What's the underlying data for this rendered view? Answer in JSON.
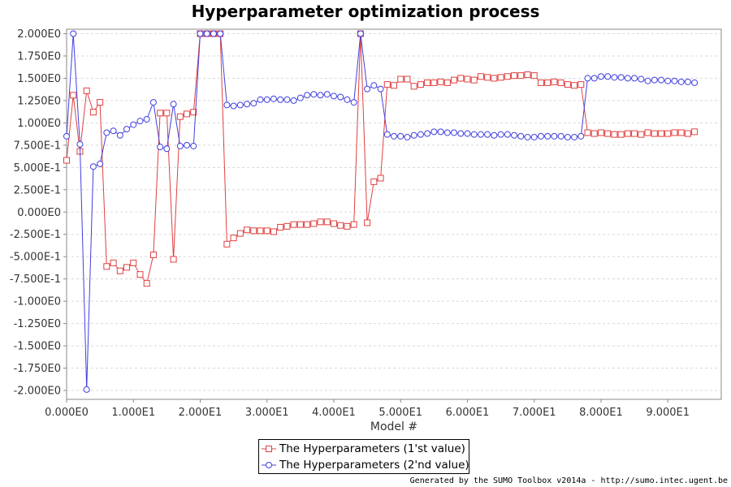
{
  "chart_data": {
    "type": "line",
    "title": "Hyperparameter optimization process",
    "xlabel": "Model #",
    "ylabel": "",
    "xlim": [
      0,
      98
    ],
    "ylim": [
      -2.1,
      2.05
    ],
    "x_ticks": [
      0,
      10,
      20,
      30,
      40,
      50,
      60,
      70,
      80,
      90
    ],
    "x_tick_labels": [
      "0.000E0",
      "1.000E1",
      "2.000E1",
      "3.000E1",
      "4.000E1",
      "5.000E1",
      "6.000E1",
      "7.000E1",
      "8.000E1",
      "9.000E1"
    ],
    "y_ticks": [
      2.0,
      1.75,
      1.5,
      1.25,
      1.0,
      0.75,
      0.5,
      0.25,
      0.0,
      -0.25,
      -0.5,
      -0.75,
      -1.0,
      -1.25,
      -1.5,
      -1.75,
      -2.0
    ],
    "y_tick_labels": [
      "2.000E0",
      "1.750E0",
      "1.500E0",
      "1.250E0",
      "1.000E0",
      "7.500E-1",
      "5.000E-1",
      "2.500E-1",
      "0.000E0",
      "-2.500E-1",
      "-5.000E-1",
      "-7.500E-1",
      "-1.000E0",
      "-1.250E0",
      "-1.500E0",
      "-1.750E0",
      "-2.000E0"
    ],
    "grid": true,
    "legend_position": "bottom-center",
    "series": [
      {
        "name": "The Hyperparameters (1'st value)",
        "color": "#e04040",
        "marker": "square",
        "x": [
          0,
          1,
          2,
          3,
          4,
          5,
          6,
          7,
          8,
          9,
          10,
          11,
          12,
          13,
          14,
          15,
          16,
          17,
          18,
          19,
          20,
          21,
          22,
          23,
          24,
          25,
          26,
          27,
          28,
          29,
          30,
          31,
          32,
          33,
          34,
          35,
          36,
          37,
          38,
          39,
          40,
          41,
          42,
          43,
          44,
          45,
          46,
          47,
          48,
          49,
          50,
          51,
          52,
          53,
          54,
          55,
          56,
          57,
          58,
          59,
          60,
          61,
          62,
          63,
          64,
          65,
          66,
          67,
          68,
          69,
          70,
          71,
          72,
          73,
          74,
          75,
          76,
          77,
          78,
          79,
          80,
          81,
          82,
          83,
          84,
          85,
          86,
          87,
          88,
          89,
          90,
          91,
          92,
          93,
          94
        ],
        "y": [
          0.58,
          1.31,
          0.68,
          1.36,
          1.12,
          1.23,
          -0.61,
          -0.57,
          -0.66,
          -0.62,
          -0.57,
          -0.7,
          -0.8,
          -0.48,
          1.11,
          1.11,
          -0.53,
          1.07,
          1.1,
          1.12,
          2.0,
          2.0,
          2.0,
          2.0,
          -0.36,
          -0.29,
          -0.24,
          -0.2,
          -0.21,
          -0.21,
          -0.21,
          -0.22,
          -0.17,
          -0.16,
          -0.14,
          -0.14,
          -0.14,
          -0.13,
          -0.11,
          -0.11,
          -0.13,
          -0.15,
          -0.16,
          -0.14,
          2.0,
          -0.12,
          0.34,
          0.38,
          1.43,
          1.42,
          1.49,
          1.49,
          1.41,
          1.43,
          1.45,
          1.45,
          1.46,
          1.45,
          1.48,
          1.5,
          1.49,
          1.48,
          1.52,
          1.51,
          1.5,
          1.51,
          1.52,
          1.53,
          1.53,
          1.54,
          1.53,
          1.45,
          1.45,
          1.46,
          1.45,
          1.43,
          1.42,
          1.43,
          0.89,
          0.88,
          0.89,
          0.88,
          0.87,
          0.87,
          0.88,
          0.88,
          0.87,
          0.89,
          0.88,
          0.88,
          0.88,
          0.89,
          0.89,
          0.88,
          0.9
        ]
      },
      {
        "name": "The Hyperparameters (2'nd value)",
        "color": "#4040e0",
        "marker": "circle",
        "x": [
          0,
          1,
          2,
          3,
          4,
          5,
          6,
          7,
          8,
          9,
          10,
          11,
          12,
          13,
          14,
          15,
          16,
          17,
          18,
          19,
          20,
          21,
          22,
          23,
          24,
          25,
          26,
          27,
          28,
          29,
          30,
          31,
          32,
          33,
          34,
          35,
          36,
          37,
          38,
          39,
          40,
          41,
          42,
          43,
          44,
          45,
          46,
          47,
          48,
          49,
          50,
          51,
          52,
          53,
          54,
          55,
          56,
          57,
          58,
          59,
          60,
          61,
          62,
          63,
          64,
          65,
          66,
          67,
          68,
          69,
          70,
          71,
          72,
          73,
          74,
          75,
          76,
          77,
          78,
          79,
          80,
          81,
          82,
          83,
          84,
          85,
          86,
          87,
          88,
          89,
          90,
          91,
          92,
          93,
          94
        ],
        "y": [
          0.85,
          2.0,
          0.76,
          -1.99,
          0.51,
          0.54,
          0.89,
          0.91,
          0.86,
          0.93,
          0.98,
          1.02,
          1.04,
          1.23,
          0.73,
          0.71,
          1.21,
          0.74,
          0.75,
          0.74,
          2.0,
          2.0,
          2.0,
          2.0,
          1.2,
          1.19,
          1.2,
          1.21,
          1.22,
          1.26,
          1.26,
          1.27,
          1.26,
          1.26,
          1.25,
          1.28,
          1.31,
          1.32,
          1.31,
          1.32,
          1.3,
          1.29,
          1.26,
          1.23,
          2.0,
          1.38,
          1.42,
          1.38,
          0.87,
          0.85,
          0.85,
          0.84,
          0.86,
          0.87,
          0.88,
          0.9,
          0.9,
          0.89,
          0.89,
          0.88,
          0.88,
          0.87,
          0.87,
          0.87,
          0.86,
          0.87,
          0.87,
          0.86,
          0.85,
          0.84,
          0.84,
          0.85,
          0.85,
          0.85,
          0.85,
          0.84,
          0.84,
          0.85,
          1.5,
          1.5,
          1.52,
          1.52,
          1.51,
          1.51,
          1.5,
          1.5,
          1.49,
          1.47,
          1.48,
          1.48,
          1.47,
          1.47,
          1.46,
          1.46,
          1.45
        ]
      }
    ]
  },
  "footer": "Generated by the SUMO Toolbox v2014a - http://sumo.intec.ugent.be"
}
